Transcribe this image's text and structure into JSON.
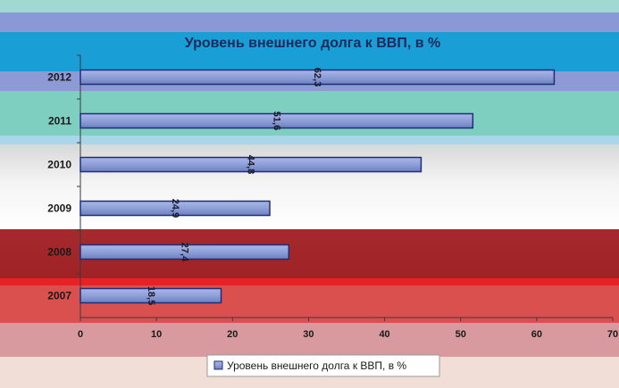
{
  "chart_data": {
    "type": "bar",
    "orientation": "horizontal",
    "title": "Уровень внешнего долга к ВВП, в %",
    "categories": [
      "2012",
      "2011",
      "2010",
      "2009",
      "2008",
      "2007"
    ],
    "series": [
      {
        "name": "Уровень внешнего долга к ВВП, в %",
        "values": [
          62.3,
          51.6,
          44.8,
          24.9,
          27.4,
          18.5
        ],
        "labels": [
          "62,3",
          "51,6",
          "44,8",
          "24,9",
          "27,4",
          "18,5"
        ],
        "color": "#8f9fd8"
      }
    ],
    "xlim": [
      0,
      70
    ],
    "xticks": [
      0,
      10,
      20,
      30,
      40,
      50,
      60,
      70
    ],
    "xtick_labels": [
      "0",
      "10",
      "20",
      "30",
      "40",
      "50",
      "60",
      "70"
    ],
    "grid": false,
    "legend_position": "bottom"
  }
}
